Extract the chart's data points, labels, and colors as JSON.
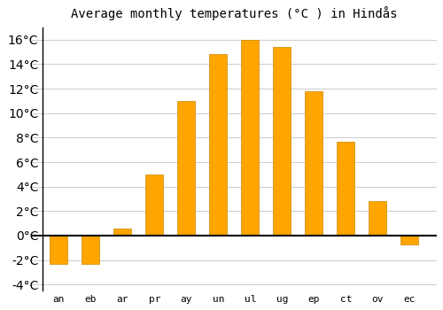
{
  "title": "Average monthly temperatures (°C ) in Hindås",
  "month_labels": [
    "an",
    "eb",
    "ar",
    "pr",
    "ay",
    "un",
    "ul",
    "ug",
    "ep",
    "ct",
    "ov",
    "ec"
  ],
  "values": [
    -2.3,
    -2.3,
    0.6,
    5.0,
    11.0,
    14.8,
    16.0,
    15.4,
    11.8,
    7.7,
    2.8,
    -0.7
  ],
  "bar_color": "#FFA500",
  "bar_edge_color": "#CC8800",
  "background_color": "#ffffff",
  "grid_color": "#cccccc",
  "ylim": [
    -4.5,
    17
  ],
  "yticks": [
    -4,
    -2,
    0,
    2,
    4,
    6,
    8,
    10,
    12,
    14,
    16
  ],
  "title_fontsize": 10,
  "tick_fontsize": 8,
  "zero_line_color": "#000000",
  "bar_width": 0.55
}
